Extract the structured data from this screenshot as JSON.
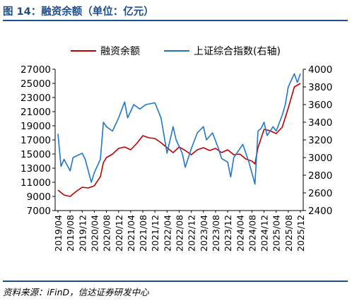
{
  "header": {
    "title": "图 14：融资余额（单位：亿元）"
  },
  "footer": {
    "source": "资料来源：iFinD，信达证券研发中心"
  },
  "colors": {
    "accent": "#1f4e8c",
    "series_left": "#c00000",
    "series_right": "#1f77c8"
  },
  "chart_data": {
    "type": "line",
    "title": "",
    "x_tick_labels": [
      "2019/04",
      "2019/08",
      "2019/12",
      "2020/04",
      "2020/08",
      "2020/12",
      "2021/04",
      "2021/08",
      "2021/12",
      "2022/04",
      "2022/08",
      "2022/12",
      "2023/04",
      "2023/08",
      "2023/12",
      "2024/04",
      "2024/08",
      "2024/12",
      "2025/04",
      "2025/08",
      "2025/12"
    ],
    "y_left": {
      "ylim": [
        7000,
        27000
      ],
      "ticks": [
        "7000",
        "9000",
        "11000",
        "13000",
        "15000",
        "17000",
        "19000",
        "21000",
        "23000",
        "25000",
        "27000"
      ]
    },
    "y_right": {
      "ylim": [
        2400,
        4000
      ],
      "ticks": [
        "2400",
        "2600",
        "2800",
        "3000",
        "3200",
        "3400",
        "3600",
        "3800",
        "4000"
      ]
    },
    "legend_position": "top",
    "series": [
      {
        "name": "融资余额",
        "axis": "left",
        "x": [
          "2019/04",
          "2019/06",
          "2019/08",
          "2019/10",
          "2019/12",
          "2020/02",
          "2020/04",
          "2020/06",
          "2020/07",
          "2020/08",
          "2020/10",
          "2020/12",
          "2021/02",
          "2021/04",
          "2021/06",
          "2021/08",
          "2021/10",
          "2021/12",
          "2022/02",
          "2022/04",
          "2022/06",
          "2022/08",
          "2022/10",
          "2022/12",
          "2023/02",
          "2023/04",
          "2023/06",
          "2023/08",
          "2023/10",
          "2023/12",
          "2024/02",
          "2024/04",
          "2024/06",
          "2024/08",
          "2024/09",
          "2024/10",
          "2024/12",
          "2025/02",
          "2025/04",
          "2025/06",
          "2025/08",
          "2025/10",
          "2025/12"
        ],
        "values": [
          9900,
          9200,
          9000,
          9700,
          10300,
          10200,
          10500,
          11800,
          13800,
          14500,
          15000,
          15800,
          16000,
          15600,
          16500,
          17600,
          17300,
          17200,
          16600,
          15900,
          15200,
          16000,
          15500,
          14900,
          15600,
          15900,
          15500,
          15800,
          15200,
          15600,
          14900,
          15000,
          14300,
          14000,
          13600,
          15900,
          18500,
          18300,
          17900,
          18800,
          21500,
          24500,
          25000
        ]
      },
      {
        "name": "上证综合指数(右轴)",
        "axis": "right",
        "x": [
          "2019/04",
          "2019/05",
          "2019/06",
          "2019/08",
          "2019/09",
          "2019/12",
          "2020/01",
          "2020/03",
          "2020/04",
          "2020/06",
          "2020/07",
          "2020/08",
          "2020/10",
          "2020/12",
          "2021/02",
          "2021/03",
          "2021/05",
          "2021/07",
          "2021/09",
          "2021/12",
          "2022/02",
          "2022/04",
          "2022/06",
          "2022/07",
          "2022/09",
          "2022/10",
          "2022/12",
          "2023/02",
          "2023/04",
          "2023/05",
          "2023/07",
          "2023/09",
          "2023/10",
          "2023/12",
          "2024/01",
          "2024/02",
          "2024/03",
          "2024/05",
          "2024/07",
          "2024/09",
          "2024/10",
          "2024/11",
          "2024/12",
          "2025/01",
          "2025/03",
          "2025/04",
          "2025/06",
          "2025/07",
          "2025/08",
          "2025/10",
          "2025/11",
          "2025/12"
        ],
        "values": [
          3270,
          2900,
          2980,
          2850,
          3000,
          3050,
          2980,
          2720,
          2830,
          2980,
          3400,
          3350,
          3300,
          3450,
          3630,
          3450,
          3600,
          3550,
          3600,
          3620,
          3450,
          3050,
          3350,
          3200,
          3050,
          2890,
          3100,
          3280,
          3350,
          3200,
          3280,
          3100,
          2990,
          2950,
          2780,
          3000,
          3050,
          3150,
          2950,
          2700,
          3300,
          3330,
          3400,
          3250,
          3350,
          3300,
          3480,
          3600,
          3800,
          3950,
          3850,
          3950
        ]
      }
    ]
  }
}
